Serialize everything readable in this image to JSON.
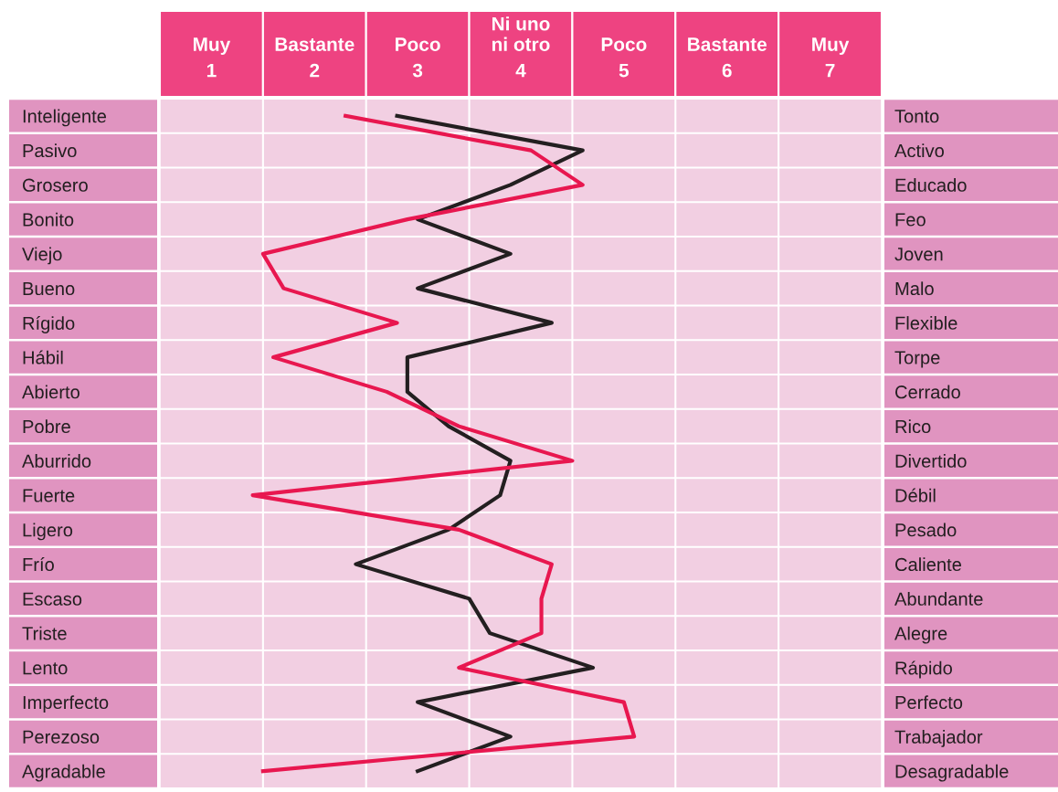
{
  "chart_data": {
    "type": "line",
    "orientation": "horizontal",
    "categories": [
      "Inteligente",
      "Pasivo",
      "Grosero",
      "Bonito",
      "Viejo",
      "Bueno",
      "Rígido",
      "Hábil",
      "Abierto",
      "Pobre",
      "Aburrido",
      "Fuerte",
      "Ligero",
      "Frío",
      "Escaso",
      "Triste",
      "Lento",
      "Imperfecto",
      "Perezoso",
      "Agradable"
    ],
    "y2_categories": [
      "Tonto",
      "Activo",
      "Educado",
      "Feo",
      "Joven",
      "Malo",
      "Flexible",
      "Torpe",
      "Cerrado",
      "Rico",
      "Divertido",
      "Débil",
      "Pesado",
      "Caliente",
      "Abundante",
      "Alegre",
      "Rápido",
      "Perfecto",
      "Trabajador",
      "Desagradable"
    ],
    "xlim": [
      0.5,
      7.5
    ],
    "xticks": [
      1,
      2,
      3,
      4,
      5,
      6,
      7
    ],
    "annotations": [
      "Muy",
      "Bastante",
      "Poco",
      "Ni uno\nni otro",
      "Poco",
      "Bastante",
      "Muy"
    ],
    "series": [
      {
        "color": "#231f20",
        "values": [
          2.8,
          4.6,
          3.9,
          3.0,
          3.9,
          3.0,
          4.3,
          2.9,
          2.9,
          3.3,
          3.9,
          3.8,
          3.3,
          2.4,
          3.5,
          3.7,
          4.7,
          3.0,
          3.9,
          3.0
        ]
      },
      {
        "color": "#e8174f",
        "values": [
          2.3,
          4.1,
          4.6,
          2.9,
          1.5,
          1.7,
          2.8,
          1.6,
          2.7,
          3.4,
          4.5,
          1.4,
          3.4,
          4.3,
          4.2,
          4.2,
          3.4,
          5.0,
          5.1,
          1.5
        ]
      }
    ]
  }
}
